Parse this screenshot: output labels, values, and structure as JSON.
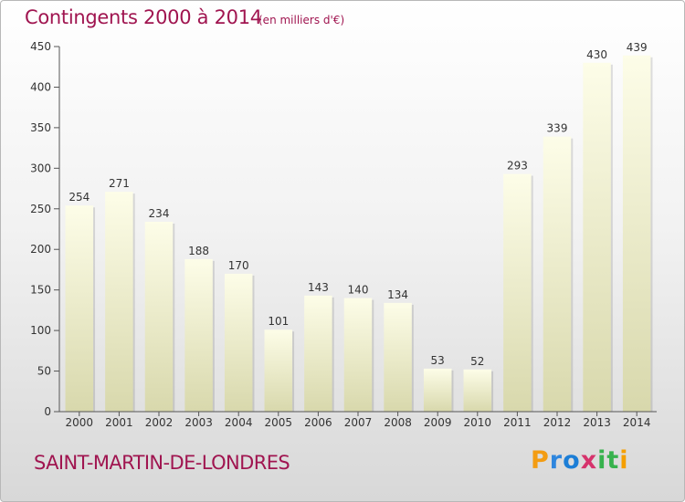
{
  "header": {
    "title": "Contingents 2000 à 2014",
    "subtitle": "(en milliers d'€)"
  },
  "footer": {
    "commune": "SAINT-MARTIN-DE-LONDRES",
    "logo": {
      "letters": [
        "P",
        "r",
        "o",
        "x",
        "i",
        "t",
        "i"
      ],
      "colors": [
        "#f39c12",
        "#2e86de",
        "#1c7ed6",
        "#d6336c",
        "#37b24d",
        "#37b24d",
        "#f59f00"
      ]
    }
  },
  "chart_data": {
    "type": "bar",
    "title": "Contingents 2000 à 2014",
    "subtitle": "(en milliers d'€)",
    "xlabel": "",
    "ylabel": "",
    "categories": [
      "2000",
      "2001",
      "2002",
      "2003",
      "2004",
      "2005",
      "2006",
      "2007",
      "2008",
      "2009",
      "2010",
      "2011",
      "2012",
      "2013",
      "2014"
    ],
    "values": [
      254,
      271,
      234,
      188,
      170,
      101,
      143,
      140,
      134,
      53,
      52,
      293,
      339,
      430,
      439
    ],
    "ylim": [
      0,
      450
    ],
    "yticks": [
      0,
      50,
      100,
      150,
      200,
      250,
      300,
      350,
      400,
      450
    ],
    "grid": false,
    "legend": "none",
    "colors": {
      "bar_top": "#fdfde8",
      "bar_bottom": "#d8d8ac",
      "axis": "#555555",
      "text": "#333333",
      "accent": "#a01550"
    }
  }
}
